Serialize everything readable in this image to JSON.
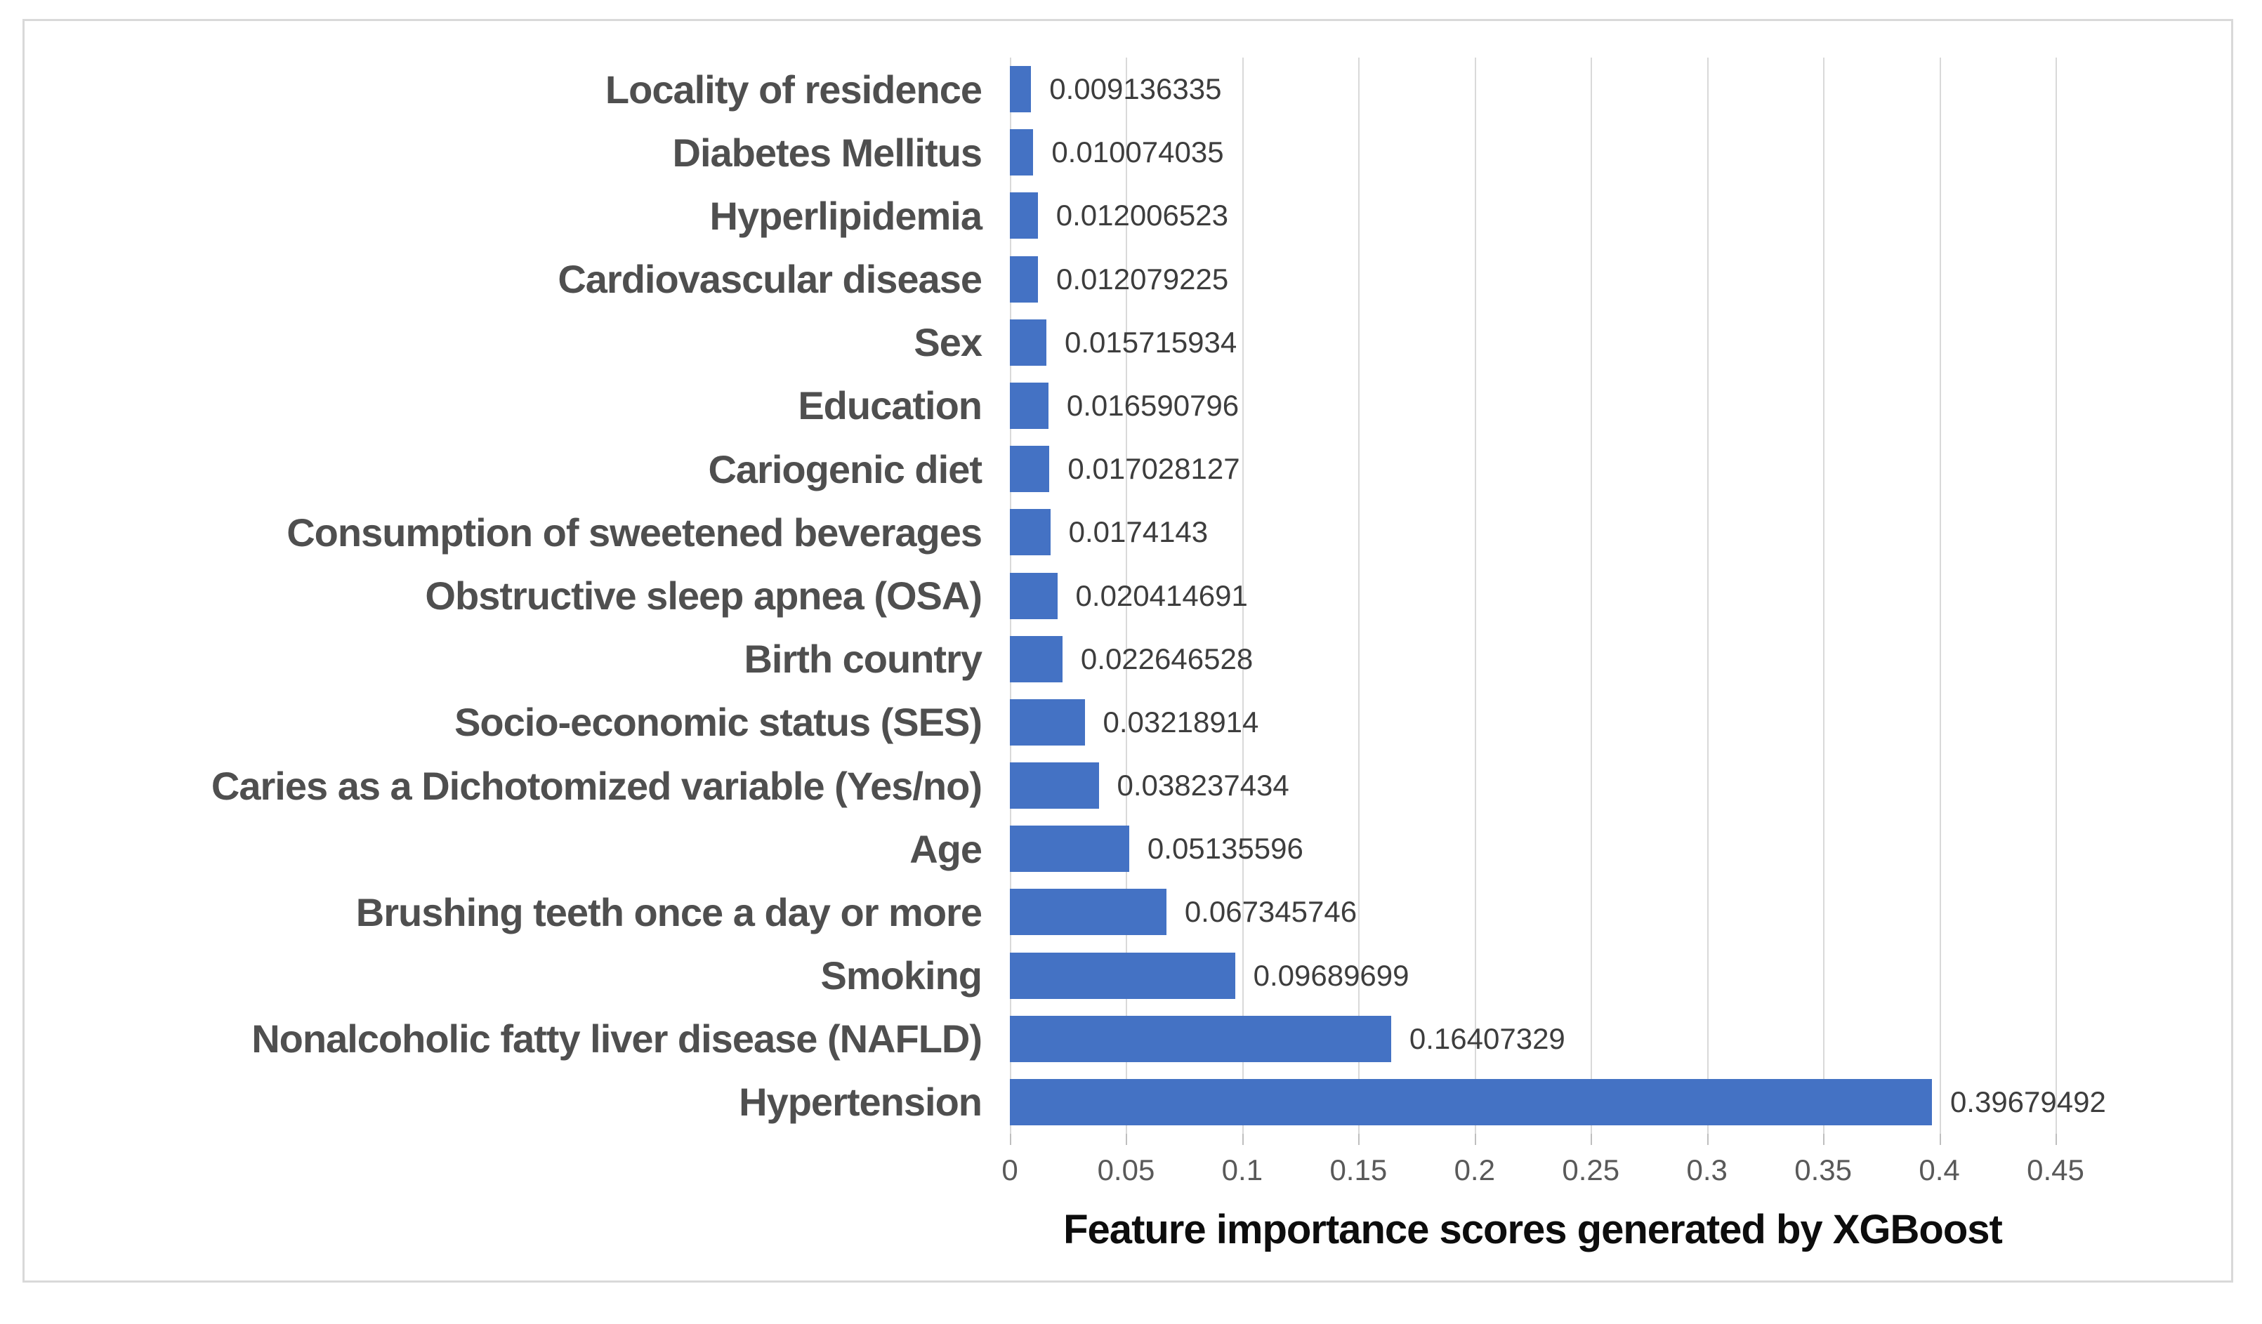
{
  "figure": {
    "background": "#ffffff",
    "border_color": "#d9d9d9"
  },
  "chart_data": {
    "type": "bar",
    "orientation": "horizontal",
    "title": "",
    "xlabel": "Feature importance scores generated by XGBoost",
    "ylabel": "",
    "categories": [
      "Locality of residence",
      "Diabetes Mellitus",
      "Hyperlipidemia",
      "Cardiovascular disease",
      "Sex",
      "Education",
      "Cariogenic diet",
      "Consumption of sweetened beverages",
      "Obstructive sleep apnea (OSA)",
      "Birth country",
      "Socio-economic status (SES)",
      "Caries as a Dichotomized variable (Yes/no)",
      "Age",
      "Brushing teeth once a day or more",
      "Smoking",
      "Nonalcoholic fatty liver disease (NAFLD)",
      "Hypertension"
    ],
    "values": [
      0.009136335,
      0.010074035,
      0.012006523,
      0.012079225,
      0.015715934,
      0.016590796,
      0.017028127,
      0.0174143,
      0.020414691,
      0.022646528,
      0.03218914,
      0.038237434,
      0.05135596,
      0.067345746,
      0.09689699,
      0.16407329,
      0.39679492
    ],
    "value_labels": [
      "0.009136335",
      "0.010074035",
      "0.012006523",
      "0.012079225",
      "0.015715934",
      "0.016590796",
      "0.017028127",
      "0.0174143",
      "0.020414691",
      "0.022646528",
      "0.03218914",
      "0.038237434",
      "0.05135596",
      "0.067345746",
      "0.09689699",
      "0.16407329",
      "0.39679492"
    ],
    "x_ticks": [
      "0",
      "0.05",
      "0.1",
      "0.15",
      "0.2",
      "0.25",
      "0.3",
      "0.35",
      "0.4",
      "0.45"
    ],
    "xlim": [
      0,
      0.45
    ],
    "grid": "vertical",
    "legend": "none",
    "bar_color": "#4472c4",
    "category_label_color": "#4f4f4f",
    "value_label_color": "#3d3d3d",
    "tick_label_color": "#595959",
    "gridline_color": "#d9d9d9",
    "axis_title_color": "#0d0d0d"
  }
}
